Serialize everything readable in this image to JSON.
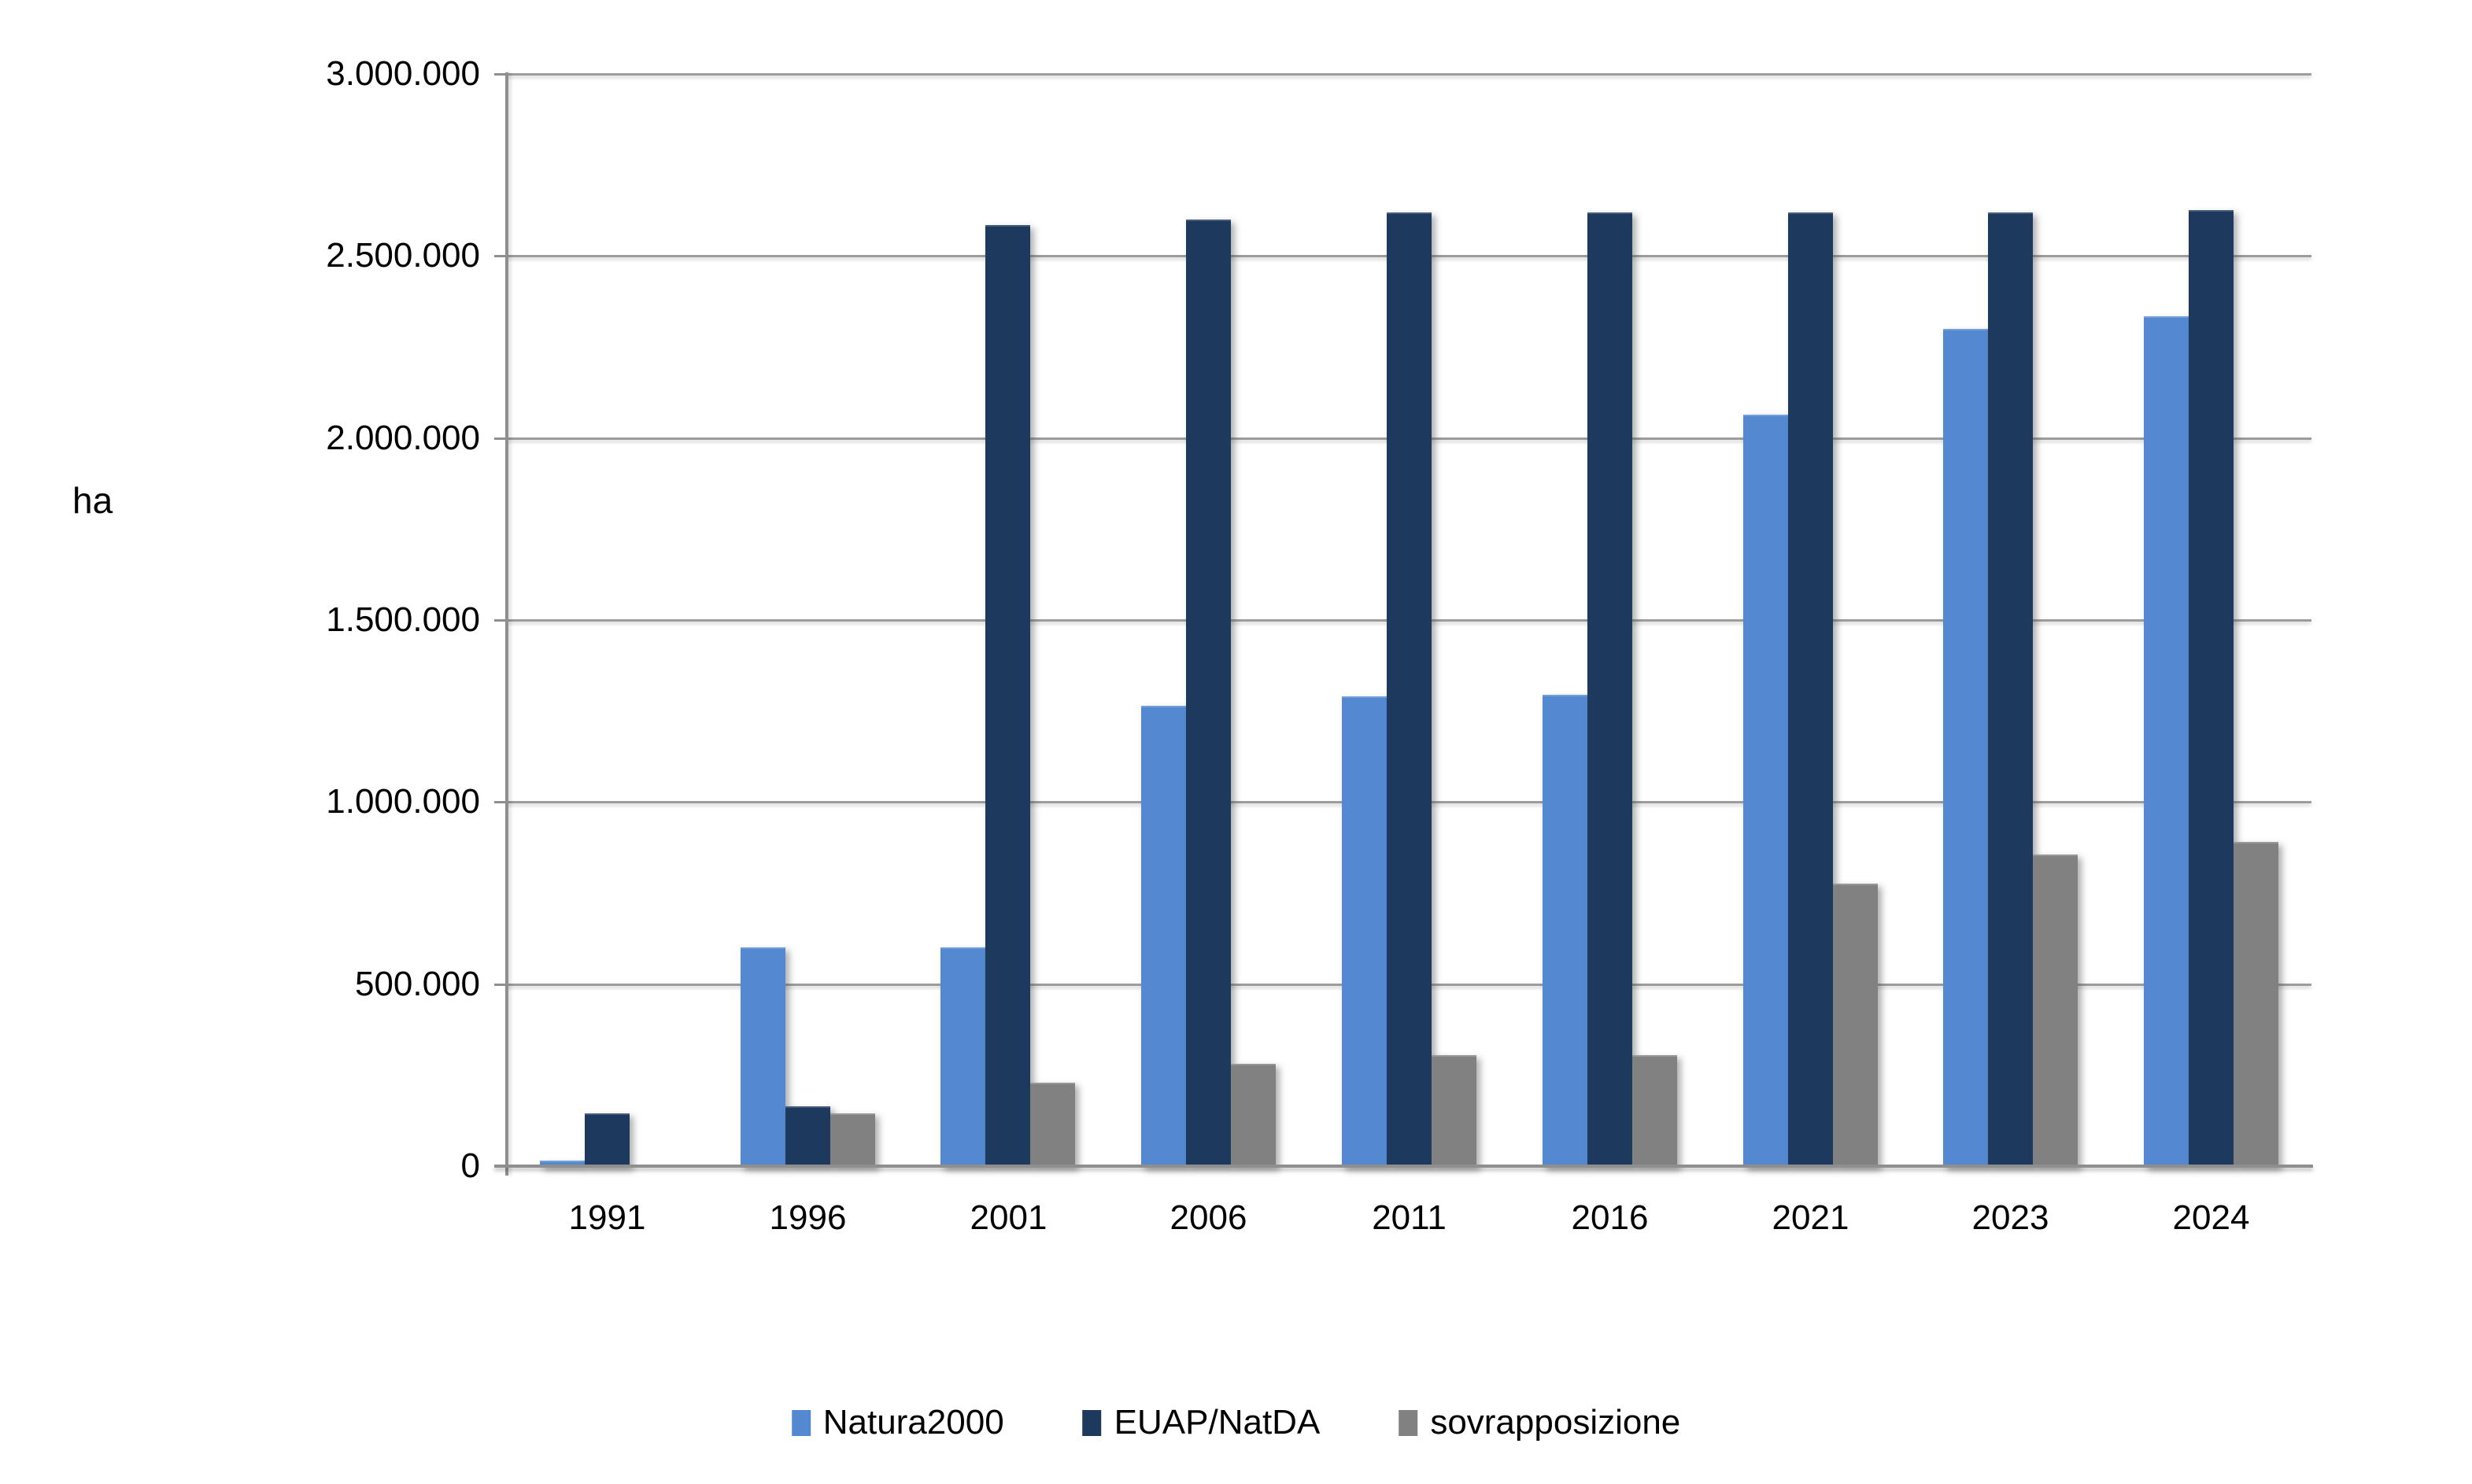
{
  "chart_data": {
    "type": "bar",
    "title": "",
    "unit_label": "ha",
    "categories": [
      "1991",
      "1996",
      "2001",
      "2006",
      "2011",
      "2016",
      "2021",
      "2023",
      "2024"
    ],
    "series": [
      {
        "name": "Natura2000",
        "color": "#5489D2",
        "values": [
          15000,
          600000,
          600000,
          1265000,
          1290000,
          1295000,
          2065000,
          2300000,
          2335000
        ]
      },
      {
        "name": "EUAP/NatDA",
        "color": "#1D3A5E",
        "values": [
          145000,
          165000,
          2585000,
          2600000,
          2620000,
          2620000,
          2620000,
          2620000,
          2625000
        ]
      },
      {
        "name": "sovrapposizione",
        "color": "#818181",
        "values": [
          0,
          145000,
          230000,
          280000,
          305000,
          305000,
          775000,
          855000,
          890000
        ]
      }
    ],
    "ylim": [
      0,
      3000000
    ],
    "ytick_step": 500000,
    "ytick_labels": [
      "0",
      "500.000",
      "1.000.000",
      "1.500.000",
      "2.000.000",
      "2.500.000",
      "3.000.000"
    ],
    "grid": true,
    "legend_position": "bottom",
    "colors": {
      "gridline": "#9C9C9C",
      "axis": "#8F8F8F",
      "text": "#000000",
      "background": "#FFFFFF"
    }
  }
}
